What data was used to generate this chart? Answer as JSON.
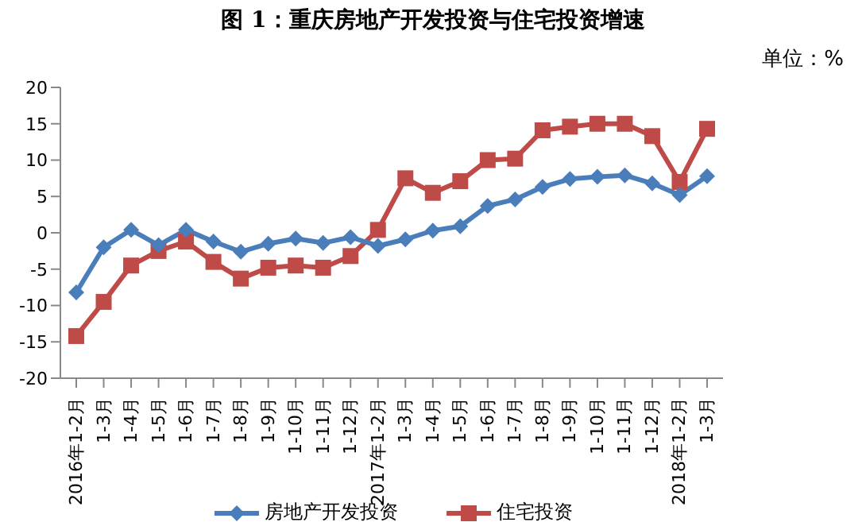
{
  "chart_data": {
    "type": "line",
    "title": "图 1：重庆房地产开发投资与住宅投资增速",
    "annotations": [
      "单位：%"
    ],
    "categories": [
      "2016年1-2月",
      "1-3月",
      "1-4月",
      "1-5月",
      "1-6月",
      "1-7月",
      "1-8月",
      "1-9月",
      "1-10月",
      "1-11月",
      "1-12月",
      "2017年1-2月",
      "1-3月",
      "1-4月",
      "1-5月",
      "1-6月",
      "1-7月",
      "1-8月",
      "1-9月",
      "1-10月",
      "1-11月",
      "1-12月",
      "2018年1-2月",
      "1-3月"
    ],
    "series": [
      {
        "name": "房地产开发投资",
        "color": "#4a7ebb",
        "marker": "diamond",
        "values": [
          -8.2,
          -2,
          0.4,
          -1.7,
          0.4,
          -1.2,
          -2.6,
          -1.5,
          -0.8,
          -1.4,
          -0.6,
          -1.8,
          -0.9,
          0.3,
          0.9,
          3.7,
          4.6,
          6.3,
          7.4,
          7.7,
          7.9,
          6.8,
          5.2,
          7.8
        ]
      },
      {
        "name": "住宅投资",
        "color": "#be4b48",
        "marker": "square",
        "values": [
          -14.2,
          -9.5,
          -4.5,
          -2.5,
          -1.2,
          -4,
          -6.3,
          -4.8,
          -4.5,
          -4.8,
          -3.2,
          0.4,
          7.5,
          5.5,
          7.1,
          10,
          10.2,
          14.1,
          14.6,
          15,
          15,
          13.3,
          7,
          14.3
        ]
      }
    ],
    "ylim": [
      -20,
      20
    ],
    "yticks": [
      -20,
      -15,
      -10,
      -5,
      0,
      5,
      10,
      15,
      20
    ],
    "grid": false,
    "legend": "bottom",
    "line_style": "solid"
  }
}
